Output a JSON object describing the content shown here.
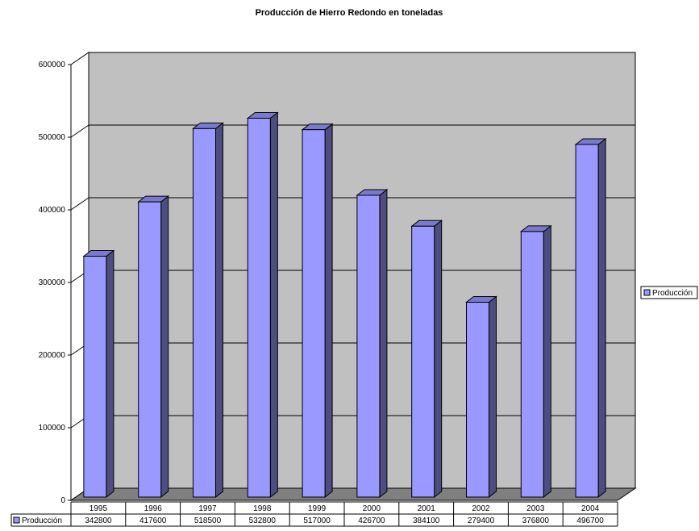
{
  "chart_data": {
    "type": "bar",
    "title": "Producción de Hierro Redondo en toneladas",
    "categories": [
      "1995",
      "1996",
      "1997",
      "1998",
      "1999",
      "2000",
      "2001",
      "2002",
      "2003",
      "2004"
    ],
    "series": [
      {
        "name": "Producción",
        "values": [
          342800,
          417600,
          518500,
          532800,
          517000,
          426700,
          384100,
          279400,
          376800,
          496700
        ]
      }
    ],
    "ylim": [
      0,
      600000
    ],
    "yticks": [
      0,
      100000,
      200000,
      300000,
      400000,
      500000,
      600000
    ],
    "grid": true,
    "legend": "right",
    "data_table": true,
    "three_d": true,
    "colors": {
      "bar_front": "#9999ff",
      "bar_side": "#4d4d7f",
      "bar_top": "#7a7acc",
      "wall": "#c0c0c0",
      "floor": "#808080",
      "outline": "#000000"
    }
  }
}
